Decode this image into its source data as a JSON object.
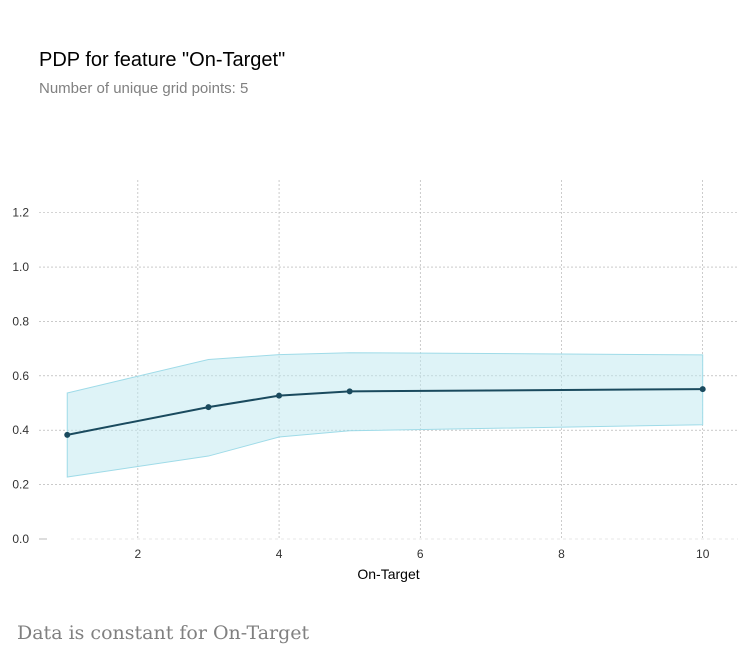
{
  "chart_data": {
    "type": "line",
    "title": "PDP for feature \"On-Target\"",
    "subtitle": "Number of unique grid points: 5",
    "xlabel": "On-Target",
    "ylabel": "",
    "xlim": [
      0.6,
      10.5
    ],
    "ylim": [
      0,
      1.32
    ],
    "x_ticks": [
      2,
      4,
      6,
      8,
      10
    ],
    "y_ticks": [
      0.0,
      0.2,
      0.4,
      0.6,
      0.8,
      1.0,
      1.2
    ],
    "x_tick_labels": [
      "2",
      "4",
      "6",
      "8",
      "10"
    ],
    "y_tick_labels": [
      "0.0",
      "0.2",
      "0.4",
      "0.6",
      "0.8",
      "1.0",
      "1.2"
    ],
    "grid": true,
    "series": [
      {
        "x": [
          1,
          3,
          4,
          5,
          10
        ],
        "y": [
          0.383,
          0.485,
          0.527,
          0.543,
          0.551
        ],
        "lower": [
          0.228,
          0.305,
          0.375,
          0.398,
          0.42
        ],
        "upper": [
          0.537,
          0.66,
          0.678,
          0.685,
          0.677
        ]
      }
    ],
    "colors": {
      "line": "#1a4a5e",
      "band": "#bde8f0",
      "band_edge": "#9fdbe8",
      "grid": "#aaaaaa"
    }
  },
  "note": "Data is constant for On-Target"
}
